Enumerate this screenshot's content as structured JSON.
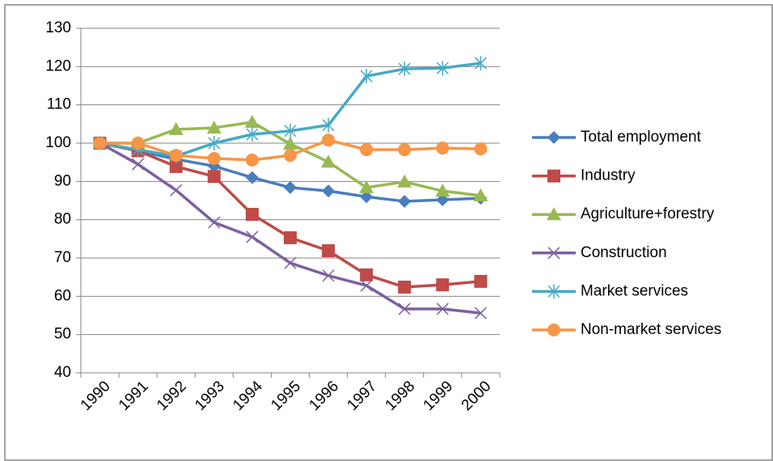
{
  "chart_data": {
    "type": "line",
    "categories": [
      "1990",
      "1991",
      "1992",
      "1993",
      "1994",
      "1995",
      "1996",
      "1997",
      "1998",
      "1999",
      "2000"
    ],
    "ylim": [
      40,
      130
    ],
    "yticks": [
      40,
      50,
      60,
      70,
      80,
      90,
      100,
      110,
      120,
      130
    ],
    "grid": true,
    "legend": "right",
    "series": [
      {
        "name": "Total employment",
        "color": "#4a7ebb",
        "marker": "diamond",
        "values": [
          100,
          98,
          95.8,
          94,
          91,
          88.4,
          87.5,
          86,
          84.8,
          85.2,
          85.6
        ]
      },
      {
        "name": "Industry",
        "color": "#be4b48",
        "marker": "square",
        "values": [
          100,
          98,
          93.9,
          91.3,
          81.4,
          75.3,
          71.9,
          65.6,
          62.4,
          63,
          63.9
        ]
      },
      {
        "name": "Agriculture+forestry",
        "color": "#98b954",
        "marker": "triangle",
        "values": [
          100,
          100,
          103.6,
          104,
          105.5,
          99.8,
          95.1,
          88.4,
          89.9,
          87.5,
          86.3
        ]
      },
      {
        "name": "Construction",
        "color": "#7d60a0",
        "marker": "x",
        "values": [
          100,
          94.5,
          87.7,
          79.3,
          75.5,
          68.7,
          65.4,
          62.8,
          56.7,
          56.7,
          55.6
        ]
      },
      {
        "name": "Market services",
        "color": "#46aac5",
        "marker": "star",
        "values": [
          100,
          98.3,
          96.6,
          100,
          102.3,
          103.2,
          104.7,
          117.5,
          119.4,
          119.6,
          120.9
        ]
      },
      {
        "name": "Non-market services",
        "color": "#f79646",
        "marker": "circle",
        "values": [
          100,
          100,
          96.8,
          96,
          95.6,
          96.8,
          100.8,
          98.3,
          98.3,
          98.7,
          98.5
        ]
      }
    ]
  }
}
